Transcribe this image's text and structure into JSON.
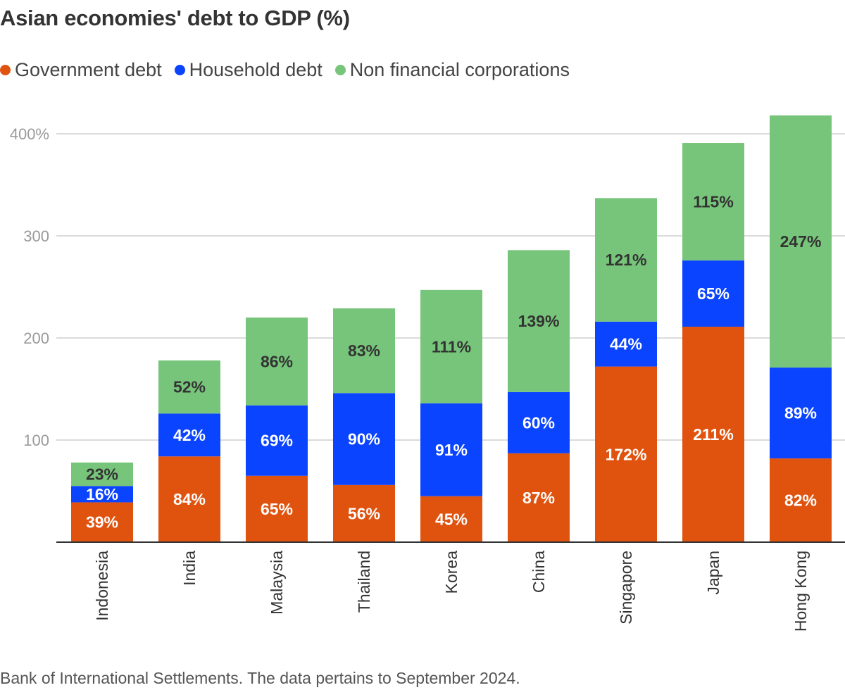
{
  "chart_data": {
    "type": "bar",
    "stacked": true,
    "title": "Asian economies' debt to GDP (%)",
    "categories": [
      "Indonesia",
      "India",
      "Malaysia",
      "Thailand",
      "Korea",
      "China",
      "Singapore",
      "Japan",
      "Hong Kong"
    ],
    "series": [
      {
        "name": "Government debt",
        "color": "#e0530f",
        "label_color": "#ffffff",
        "values": [
          39,
          84,
          65,
          56,
          45,
          87,
          172,
          211,
          82
        ]
      },
      {
        "name": "Household debt",
        "color": "#0a44ff",
        "label_color": "#ffffff",
        "values": [
          16,
          42,
          69,
          90,
          91,
          60,
          44,
          65,
          89
        ]
      },
      {
        "name": "Non financial corporations",
        "color": "#77c57a",
        "label_color": "#333333",
        "values": [
          23,
          52,
          86,
          83,
          111,
          139,
          121,
          115,
          247
        ]
      }
    ],
    "value_suffix": "%",
    "ylim": [
      0,
      420
    ],
    "yticks": [
      {
        "value": 100,
        "label": "100"
      },
      {
        "value": 200,
        "label": "200"
      },
      {
        "value": 300,
        "label": "300"
      },
      {
        "value": 400,
        "label": "400%"
      }
    ],
    "grid": true,
    "legend_position": "top-left"
  },
  "source": "Bank of International Settlements. The data pertains to September 2024."
}
